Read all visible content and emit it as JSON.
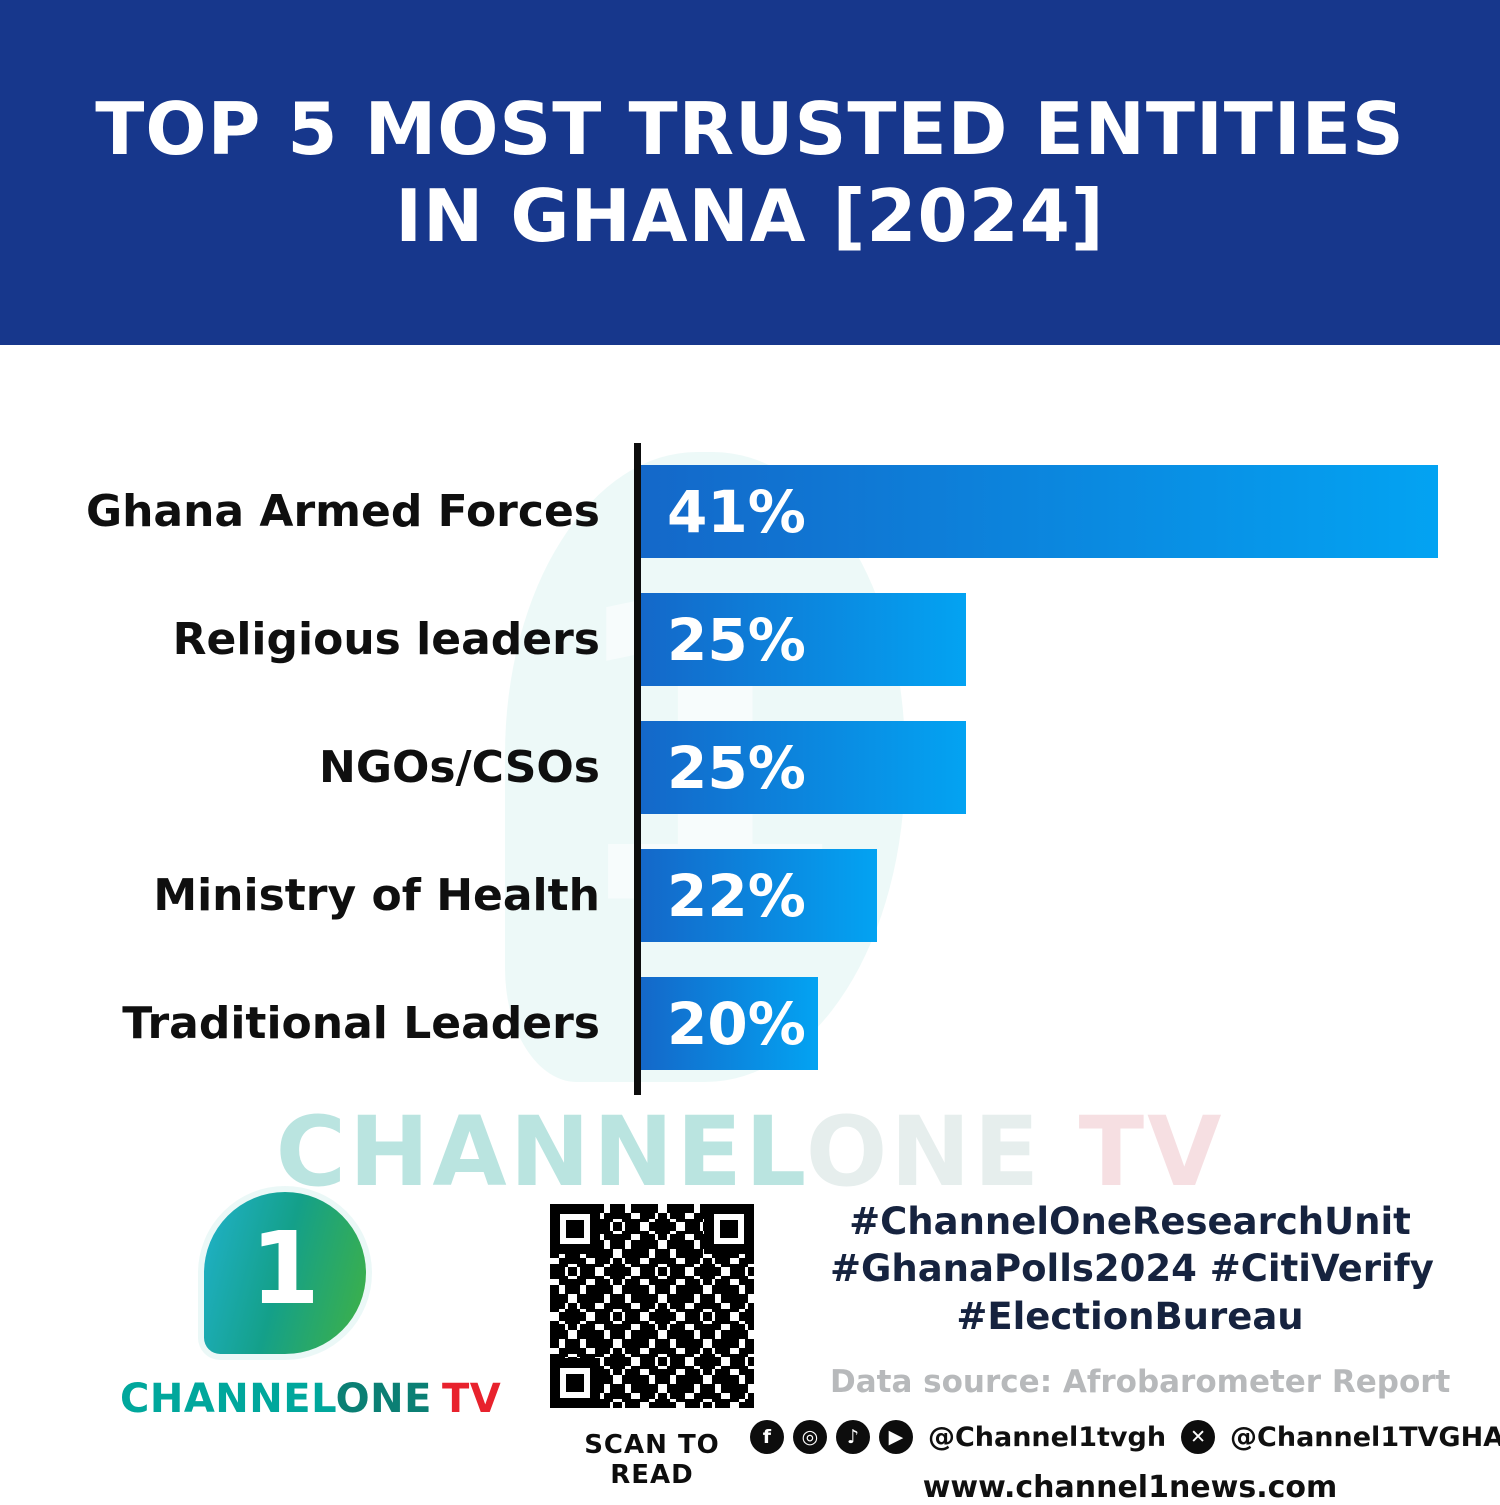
{
  "header": {
    "title_line1": "TOP 5 MOST TRUSTED ENTITIES",
    "title_line2": "IN GHANA [2024]"
  },
  "chart_data": {
    "type": "bar",
    "orientation": "horizontal",
    "title": "Top 5 Most Trusted Entities in Ghana [2024]",
    "categories": [
      "Ghana Armed Forces",
      "Religious leaders",
      "NGOs/CSOs",
      "Ministry of Health",
      "Traditional Leaders"
    ],
    "values": [
      41,
      25,
      25,
      22,
      20
    ],
    "value_labels": [
      "41%",
      "25%",
      "25%",
      "22%",
      "20%"
    ],
    "unit": "%",
    "xlim": [
      14,
      41
    ],
    "grid": false,
    "legend": false,
    "bar_gradient": [
      "#1468C9",
      "#03A3F2"
    ]
  },
  "watermark": {
    "channel": "CHANNEL",
    "one": "ONE",
    "tv": "TV"
  },
  "footer": {
    "logo": {
      "digit": "1",
      "brand_channel": "CHANNEL",
      "brand_one": "ONE",
      "brand_tv": "TV"
    },
    "qr_caption": "SCAN TO READ",
    "hashtags": [
      "#ChannelOneResearchUnit",
      "#GhanaPolls2024 #CitiVerify",
      "#ElectionBureau"
    ],
    "data_source": "Data source: Afrobarometer Report",
    "social_icons": [
      {
        "name": "facebook-icon",
        "glyph": "f"
      },
      {
        "name": "instagram-icon",
        "glyph": "◎"
      },
      {
        "name": "tiktok-icon",
        "glyph": "♪"
      },
      {
        "name": "youtube-icon",
        "glyph": "▶"
      }
    ],
    "social_handle_1": "@Channel1tvgh",
    "x_icon_glyph": "✕",
    "social_handle_2": "@Channel1TVGHA",
    "website": "www.channel1news.com"
  },
  "colors": {
    "header_bg": "#17378C",
    "bar_start": "#1468C9",
    "bar_end": "#03A3F2",
    "brand_teal": "#00A79C",
    "brand_one": "#0B7F74",
    "brand_red": "#E8222D"
  }
}
